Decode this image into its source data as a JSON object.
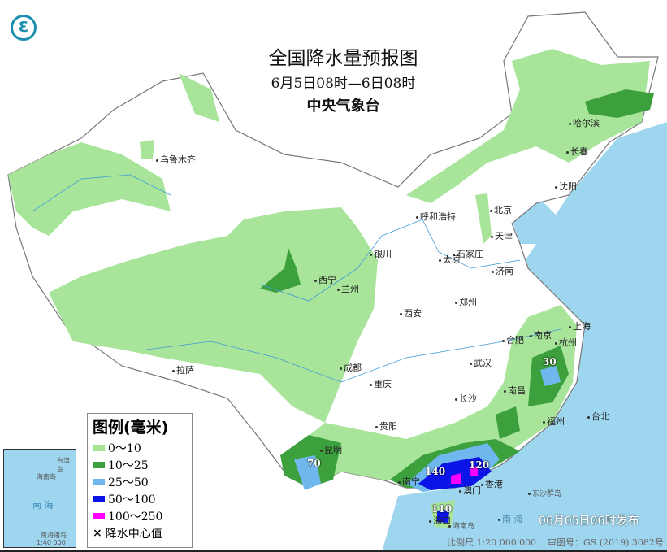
{
  "header": {
    "title": "全国降水量预报图",
    "period": "6月5日08时—6日08时",
    "agency": "中央气象台"
  },
  "legend": {
    "title": "图例(毫米)",
    "items": [
      {
        "label": "0～10",
        "color": "#a8e49a"
      },
      {
        "label": "10～25",
        "color": "#3ca03c"
      },
      {
        "label": "25～50",
        "color": "#6fb8ee"
      },
      {
        "label": "50～100",
        "color": "#0a14e6"
      },
      {
        "label": "100～250",
        "color": "#ff00ff"
      }
    ],
    "center_marker": "降水中心值"
  },
  "cities": [
    "乌鲁木齐",
    "哈尔滨",
    "长春",
    "沈阳",
    "呼和浩特",
    "北京",
    "天津",
    "石家庄",
    "太原",
    "银川",
    "西宁",
    "兰州",
    "济南",
    "郑州",
    "西安",
    "合肥",
    "南京",
    "上海",
    "杭州",
    "武汉",
    "成都",
    "拉萨",
    "重庆",
    "长沙",
    "南昌",
    "福州",
    "台北",
    "贵阳",
    "昆明",
    "南宁",
    "澳门",
    "香港",
    "海口"
  ],
  "precip_centers": [
    "30",
    "70",
    "140",
    "120",
    "110"
  ],
  "inset": {
    "sea": "南 海",
    "island": "海南岛",
    "island2": "台湾岛",
    "islands": "南海诸岛",
    "scale": "1:40 000 000"
  },
  "sea_labels": {
    "south_sea": "南 海",
    "hainan": "海南岛",
    "dongsha": "东沙群岛"
  },
  "footer": {
    "published": "06月05日06时发布",
    "scale": "比例尺 1:20 000 000",
    "approval": "审图号：GS (2019) 3082号"
  },
  "colors": {
    "sea": "#9fd6ef",
    "land": "#ffffff",
    "border": "#888888"
  }
}
